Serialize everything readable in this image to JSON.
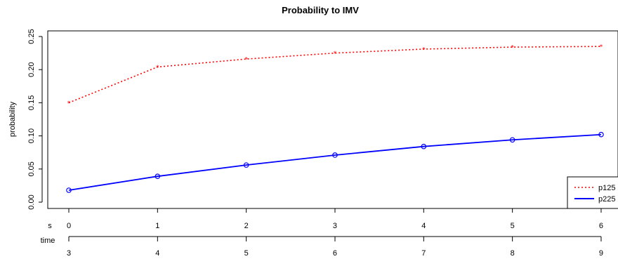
{
  "chart_data": {
    "type": "line",
    "title": "Probability to IMV",
    "ylabel": "probability",
    "xlabel": "",
    "x": [
      0,
      1,
      2,
      3,
      4,
      5,
      6
    ],
    "ylim": [
      0,
      0.25
    ],
    "y_ticks": [
      "0.00",
      "0.05",
      "0.10",
      "0.15",
      "0.20",
      "0.25"
    ],
    "x_axis_label": "s",
    "x_ticks": [
      "0",
      "1",
      "2",
      "3",
      "4",
      "5",
      "6"
    ],
    "time_axis_label": "time",
    "time_ticks": [
      "3",
      "4",
      "5",
      "6",
      "7",
      "8",
      "9"
    ],
    "series": [
      {
        "name": "p125",
        "color": "#ff0000",
        "style": "dotted",
        "marker": "asterisk",
        "values": [
          0.15,
          0.204,
          0.216,
          0.225,
          0.231,
          0.234,
          0.235
        ]
      },
      {
        "name": "p225",
        "color": "#0000ff",
        "style": "solid",
        "marker": "circle",
        "values": [
          0.018,
          0.039,
          0.056,
          0.071,
          0.084,
          0.094,
          0.102
        ]
      }
    ],
    "legend_position": "bottom-right",
    "grid": false
  }
}
